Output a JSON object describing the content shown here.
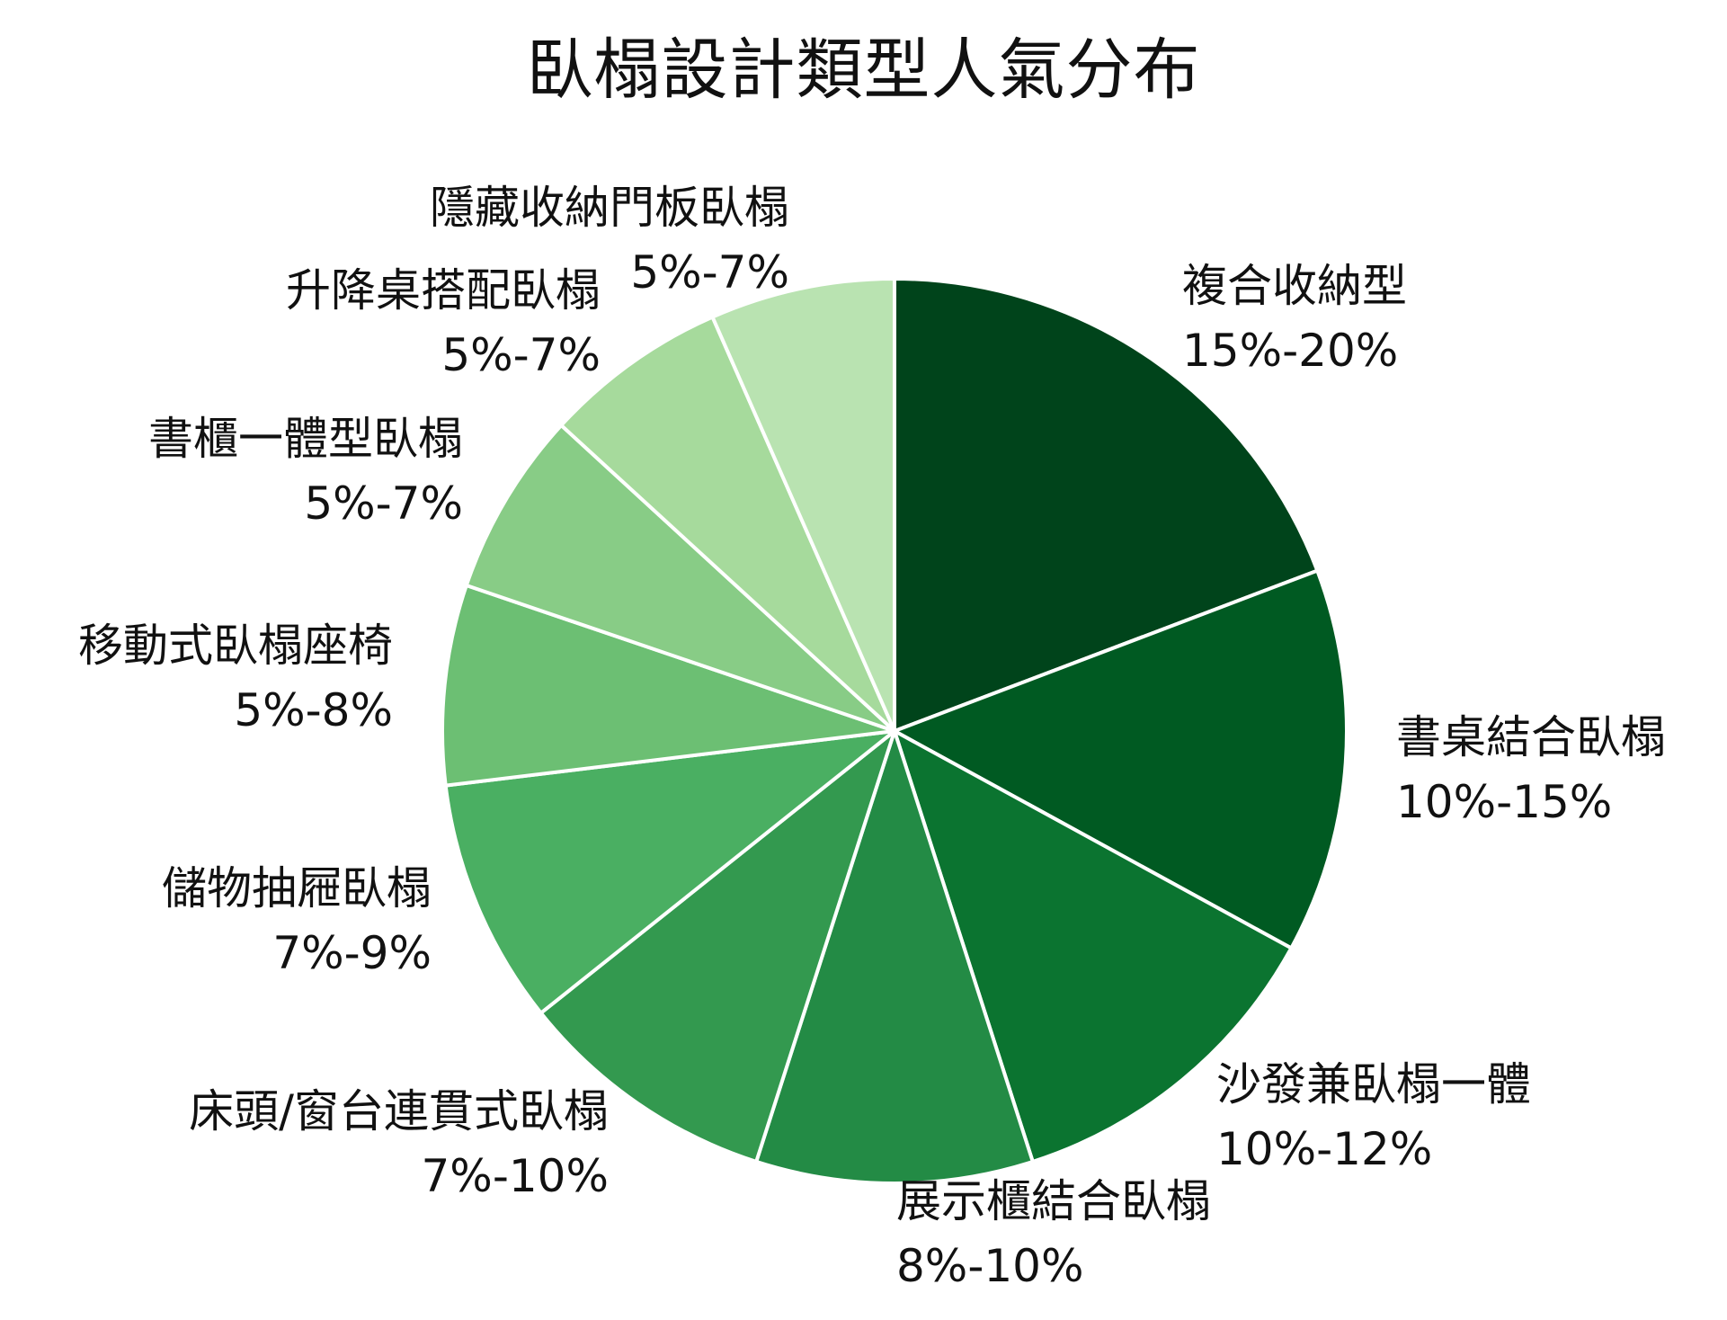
{
  "chart_data": {
    "type": "pie",
    "title": "臥榻設計類型人氣分布",
    "start": "12 o'clock",
    "direction": "clockwise",
    "slices": [
      {
        "label": "複合收納型",
        "range": "15%-20%",
        "value": 17.5,
        "color": "#00441b"
      },
      {
        "label": "書桌結合臥榻",
        "range": "10%-15%",
        "value": 12.5,
        "color": "#005a22"
      },
      {
        "label": "沙發兼臥榻一體",
        "range": "10%-12%",
        "value": 11.0,
        "color": "#0b7430"
      },
      {
        "label": "展示櫃結合臥榻",
        "range": "8%-10%",
        "value": 9.0,
        "color": "#238b45"
      },
      {
        "label": "床頭/窗台連貫式臥榻",
        "range": "7%-10%",
        "value": 8.5,
        "color": "#33994f"
      },
      {
        "label": "儲物抽屜臥榻",
        "range": "7%-9%",
        "value": 8.0,
        "color": "#4aaf62"
      },
      {
        "label": "移動式臥榻座椅",
        "range": "5%-8%",
        "value": 6.5,
        "color": "#6cbf73"
      },
      {
        "label": "書櫃一體型臥榻",
        "range": "5%-7%",
        "value": 6.0,
        "color": "#88cc86"
      },
      {
        "label": "升降桌搭配臥榻",
        "range": "5%-7%",
        "value": 6.0,
        "color": "#a6da9c"
      },
      {
        "label": "隱藏收納門板臥榻",
        "range": "5%-7%",
        "value": 6.0,
        "color": "#b9e3b1"
      }
    ]
  }
}
